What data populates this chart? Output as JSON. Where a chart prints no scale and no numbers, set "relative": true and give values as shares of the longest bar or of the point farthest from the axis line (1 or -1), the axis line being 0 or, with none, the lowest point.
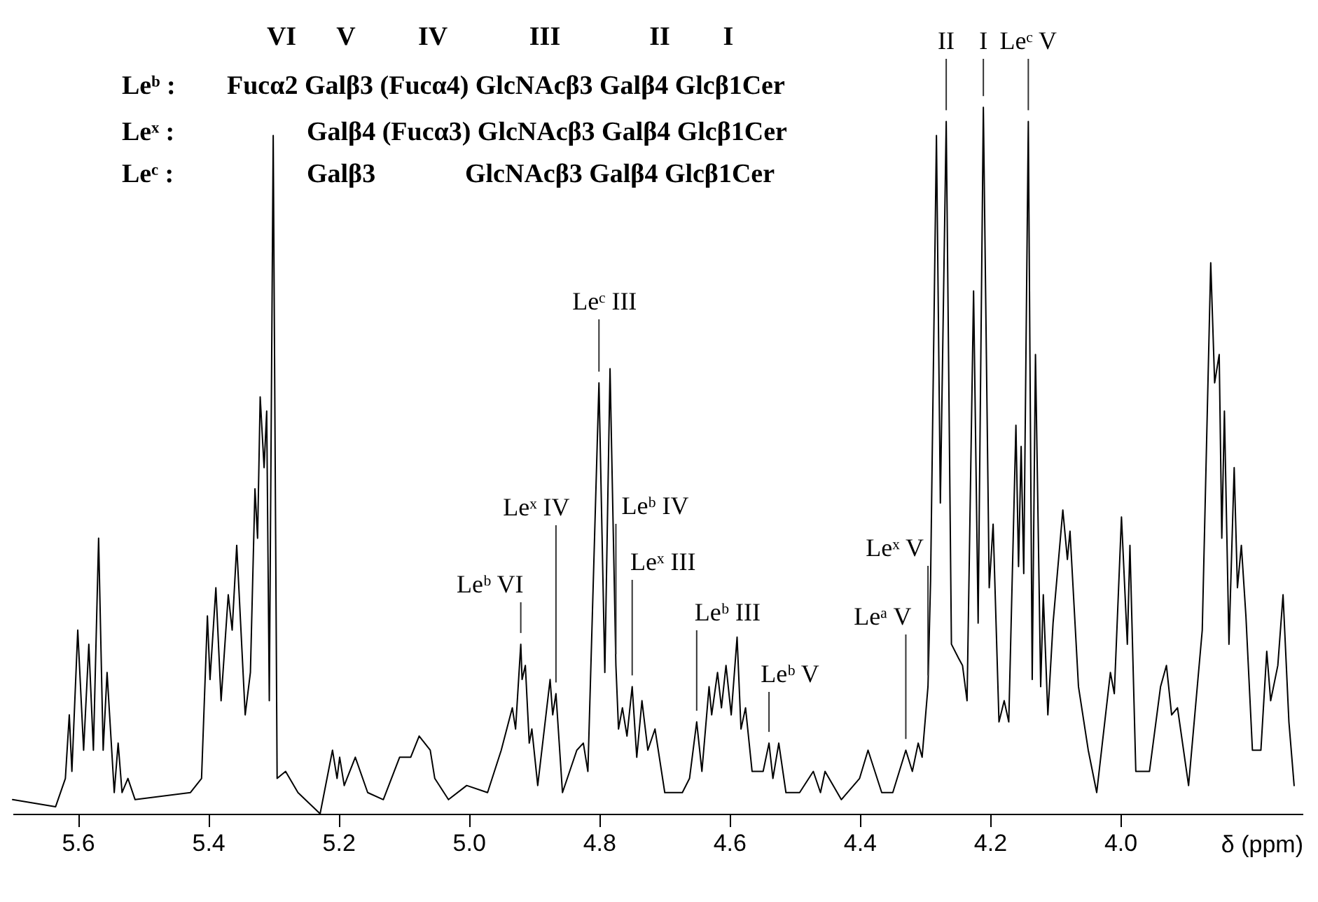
{
  "chart_data": {
    "type": "line",
    "relative": true,
    "color": "#000000",
    "tick_labels": "x",
    "xlabel": "δ (ppm)",
    "xlim": [
      5.7,
      3.72
    ],
    "xticks": [
      5.6,
      5.4,
      5.2,
      {
        "value": 5.0,
        "label": "5.0"
      },
      4.8,
      4.6,
      4.4,
      4.2,
      {
        "value": 4.0,
        "label": "4.0"
      }
    ],
    "x": [
      5.7,
      5.634,
      5.619,
      5.613,
      5.609,
      5.6,
      5.591,
      5.583,
      5.576,
      5.568,
      5.561,
      5.555,
      5.544,
      5.538,
      5.532,
      5.523,
      5.512,
      5.427,
      5.41,
      5.401,
      5.397,
      5.388,
      5.38,
      5.369,
      5.363,
      5.356,
      5.343,
      5.335,
      5.328,
      5.324,
      5.32,
      5.314,
      5.31,
      5.306,
      5.3,
      5.294,
      5.281,
      5.262,
      5.228,
      5.209,
      5.202,
      5.198,
      5.191,
      5.174,
      5.155,
      5.131,
      5.106,
      5.089,
      5.076,
      5.059,
      5.052,
      5.031,
      5.003,
      4.971,
      4.95,
      4.933,
      4.928,
      4.92,
      4.918,
      4.913,
      4.907,
      4.903,
      4.894,
      4.875,
      4.871,
      4.866,
      4.856,
      4.834,
      4.824,
      4.817,
      4.8,
      4.791,
      4.783,
      4.774,
      4.77,
      4.764,
      4.757,
      4.749,
      4.742,
      4.734,
      4.725,
      4.714,
      4.699,
      4.672,
      4.661,
      4.65,
      4.642,
      4.631,
      4.627,
      4.618,
      4.612,
      4.605,
      4.597,
      4.588,
      4.582,
      4.575,
      4.565,
      4.548,
      4.539,
      4.533,
      4.524,
      4.513,
      4.492,
      4.471,
      4.46,
      4.453,
      4.428,
      4.4,
      4.387,
      4.366,
      4.349,
      4.329,
      4.319,
      4.31,
      4.304,
      4.295,
      4.291,
      4.282,
      4.276,
      4.267,
      4.259,
      4.248,
      4.242,
      4.235,
      4.225,
      4.218,
      4.21,
      4.201,
      4.195,
      4.186,
      4.178,
      4.171,
      4.16,
      4.156,
      4.152,
      4.148,
      4.141,
      4.135,
      4.13,
      4.122,
      4.118,
      4.111,
      4.103,
      4.088,
      4.081,
      4.077,
      4.064,
      4.049,
      4.036,
      4.015,
      4.009,
      3.998,
      3.989,
      3.985,
      3.976,
      3.955,
      3.938,
      3.929,
      3.921,
      3.912,
      3.895,
      3.874,
      3.861,
      3.855,
      3.848,
      3.844,
      3.84,
      3.833,
      3.825,
      3.82,
      3.814,
      3.807,
      3.797,
      3.784,
      3.775,
      3.769,
      3.758,
      3.75,
      3.741,
      3.733
    ],
    "values": [
      0.02,
      0.01,
      0.05,
      0.14,
      0.06,
      0.26,
      0.09,
      0.24,
      0.09,
      0.39,
      0.09,
      0.2,
      0.03,
      0.1,
      0.03,
      0.05,
      0.02,
      0.03,
      0.05,
      0.28,
      0.19,
      0.32,
      0.16,
      0.31,
      0.26,
      0.38,
      0.14,
      0.2,
      0.46,
      0.39,
      0.59,
      0.49,
      0.57,
      0.16,
      0.96,
      0.05,
      0.06,
      0.03,
      0,
      0.09,
      0.05,
      0.08,
      0.04,
      0.08,
      0.03,
      0.02,
      0.08,
      0.08,
      0.11,
      0.09,
      0.05,
      0.02,
      0.04,
      0.03,
      0.09,
      0.15,
      0.12,
      0.24,
      0.19,
      0.21,
      0.1,
      0.12,
      0.04,
      0.19,
      0.14,
      0.17,
      0.03,
      0.09,
      0.1,
      0.06,
      0.61,
      0.2,
      0.63,
      0.21,
      0.12,
      0.15,
      0.11,
      0.18,
      0.08,
      0.16,
      0.09,
      0.12,
      0.03,
      0.03,
      0.05,
      0.13,
      0.06,
      0.18,
      0.14,
      0.2,
      0.15,
      0.21,
      0.14,
      0.25,
      0.12,
      0.15,
      0.06,
      0.06,
      0.1,
      0.05,
      0.1,
      0.03,
      0.03,
      0.06,
      0.03,
      0.06,
      0.02,
      0.05,
      0.09,
      0.03,
      0.03,
      0.09,
      0.06,
      0.1,
      0.08,
      0.18,
      0.33,
      0.96,
      0.44,
      0.98,
      0.24,
      0.22,
      0.21,
      0.16,
      0.74,
      0.27,
      1.0,
      0.32,
      0.41,
      0.13,
      0.16,
      0.13,
      0.55,
      0.35,
      0.52,
      0.34,
      0.98,
      0.19,
      0.65,
      0.18,
      0.31,
      0.14,
      0.27,
      0.43,
      0.36,
      0.4,
      0.18,
      0.09,
      0.03,
      0.2,
      0.17,
      0.42,
      0.24,
      0.38,
      0.06,
      0.06,
      0.18,
      0.21,
      0.14,
      0.15,
      0.04,
      0.26,
      0.78,
      0.61,
      0.65,
      0.39,
      0.57,
      0.24,
      0.49,
      0.32,
      0.38,
      0.28,
      0.09,
      0.09,
      0.23,
      0.16,
      0.21,
      0.31,
      0.13,
      0.04
    ],
    "annotations": [
      {
        "text": "Leᵇ VI",
        "x": 4.92,
        "y": 0.24
      },
      {
        "text": "Leˣ IV",
        "x": 4.866,
        "y": 0.17
      },
      {
        "text": "Leᶜ III",
        "x": 4.8,
        "y": 0.61
      },
      {
        "text": "Leᵇ IV",
        "x": 4.774,
        "y": 0.21
      },
      {
        "text": "Leˣ III",
        "x": 4.749,
        "y": 0.18
      },
      {
        "text": "Leᵇ III",
        "x": 4.65,
        "y": 0.13
      },
      {
        "text": "Leᵇ V",
        "x": 4.539,
        "y": 0.1
      },
      {
        "text": "Leᵃ V",
        "x": 4.329,
        "y": 0.09
      },
      {
        "text": "Leˣ V",
        "x": 4.295,
        "y": 0.18
      },
      {
        "text": "II",
        "x": 4.267,
        "y": 0.98
      },
      {
        "text": "I",
        "x": 4.21,
        "y": 1.0
      },
      {
        "text": "Leᶜ V",
        "x": 4.141,
        "y": 0.98
      },
      "VI",
      "V",
      "IV",
      "III",
      "II",
      "I",
      "Leᵇ :",
      "Fucα2 Galβ3 (Fucα4) GlcNAcβ3 Galβ4 Glcβ1Cer",
      "Leˣ :",
      "Galβ4 (Fucα3) GlcNAcβ3 Galβ4 Glcβ1Cer",
      "Leᶜ :",
      "Galβ3",
      "GlcNAcβ3 Galβ4 Glcβ1Cer"
    ]
  }
}
